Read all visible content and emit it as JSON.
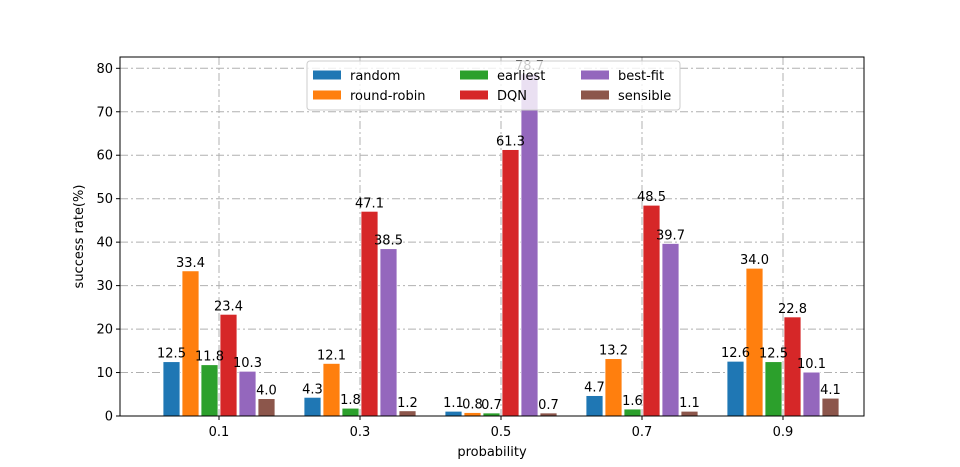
{
  "chart_data": {
    "type": "bar",
    "title": "",
    "xlabel": "probability",
    "ylabel": "success rate(%)",
    "categories": [
      "0.1",
      "0.3",
      "0.5",
      "0.7",
      "0.9"
    ],
    "ylim": [
      0,
      82.6
    ],
    "yticks": [
      0,
      10,
      20,
      30,
      40,
      50,
      60,
      70,
      80
    ],
    "grid": true,
    "legend_placement": "upper center",
    "series": [
      {
        "name": "random",
        "color": "#1f77b4",
        "values": [
          12.5,
          4.3,
          1.1,
          4.7,
          12.6
        ]
      },
      {
        "name": "round-robin",
        "color": "#ff7f0e",
        "values": [
          33.4,
          12.1,
          0.8,
          13.2,
          34.0
        ]
      },
      {
        "name": "earliest",
        "color": "#2ca02c",
        "values": [
          11.8,
          1.8,
          0.7,
          1.6,
          12.5
        ]
      },
      {
        "name": "DQN",
        "color": "#d62728",
        "values": [
          23.4,
          47.1,
          61.3,
          48.5,
          22.8
        ]
      },
      {
        "name": "best-fit",
        "color": "#9467bd",
        "values": [
          10.3,
          38.5,
          78.7,
          39.7,
          10.1
        ]
      },
      {
        "name": "sensible",
        "color": "#8c564b",
        "values": [
          4.0,
          1.2,
          0.7,
          1.1,
          4.1
        ]
      }
    ]
  }
}
